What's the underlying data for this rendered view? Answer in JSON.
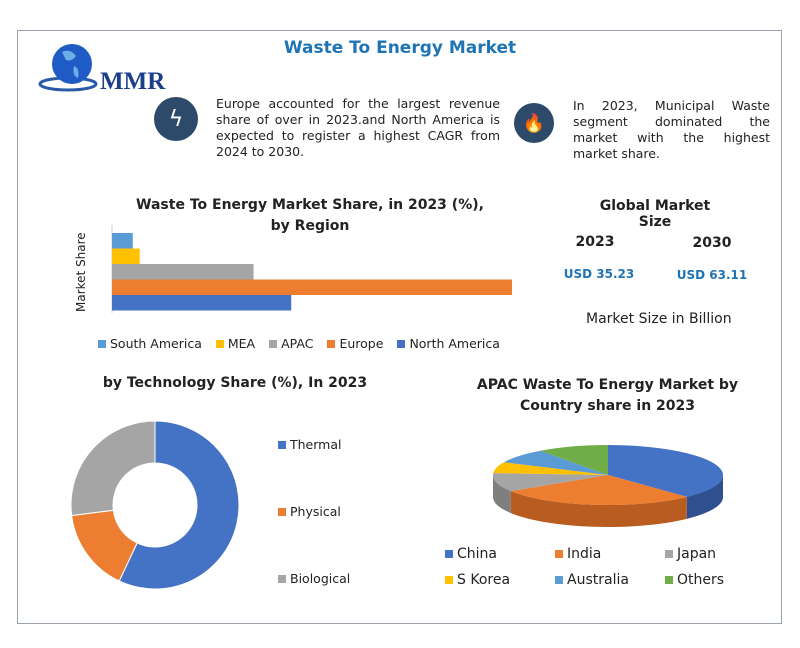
{
  "title": "Waste To Energy Market",
  "logo": "MMR",
  "insights": [
    {
      "icon": "lightning-icon",
      "text": "Europe accounted for the largest revenue share of over in 2023.and North America is expected to register a highest CAGR from 2024 to 2030."
    },
    {
      "icon": "flame-icon",
      "text": "In 2023, Municipal Waste segment dominated the market with the highest market share."
    }
  ],
  "market_size": {
    "title": "Global Market Size",
    "years": [
      "2023",
      "2030"
    ],
    "values": [
      "USD 35.23",
      "USD 63.11"
    ],
    "unit_label": "Market Size in Billion"
  },
  "chart_data": [
    {
      "type": "bar",
      "orientation": "horizontal",
      "title": "Waste To Energy Market Share, in 2023 (%), by Region",
      "ylabel": "Market Share",
      "categories": [
        "South America",
        "MEA",
        "APAC",
        "Europe",
        "North America"
      ],
      "values": [
        2.7,
        3.6,
        18.4,
        52.0,
        23.3
      ],
      "colors": [
        "#5b9bd5",
        "#ffc000",
        "#a5a5a5",
        "#ed7d31",
        "#4472c4"
      ],
      "legend": "bottom",
      "grid": false
    },
    {
      "type": "pie",
      "variant": "donut",
      "title": "by Technology Share (%), In 2023",
      "categories": [
        "Thermal",
        "Physical",
        "Biological"
      ],
      "values": [
        57,
        16,
        27
      ],
      "colors": [
        "#4472c4",
        "#ed7d31",
        "#a5a5a5"
      ],
      "legend": "right"
    },
    {
      "type": "pie",
      "variant": "3d",
      "title": "APAC Waste To Energy Market by Country share in 2023",
      "categories": [
        "China",
        "India",
        "Japan",
        "S Korea",
        "Australia",
        "Others"
      ],
      "values": [
        38,
        28,
        10,
        6,
        8,
        10
      ],
      "colors": [
        "#4472c4",
        "#ed7d31",
        "#a5a5a5",
        "#ffc000",
        "#5b9bd5",
        "#70ad47"
      ],
      "legend": "bottom"
    }
  ]
}
